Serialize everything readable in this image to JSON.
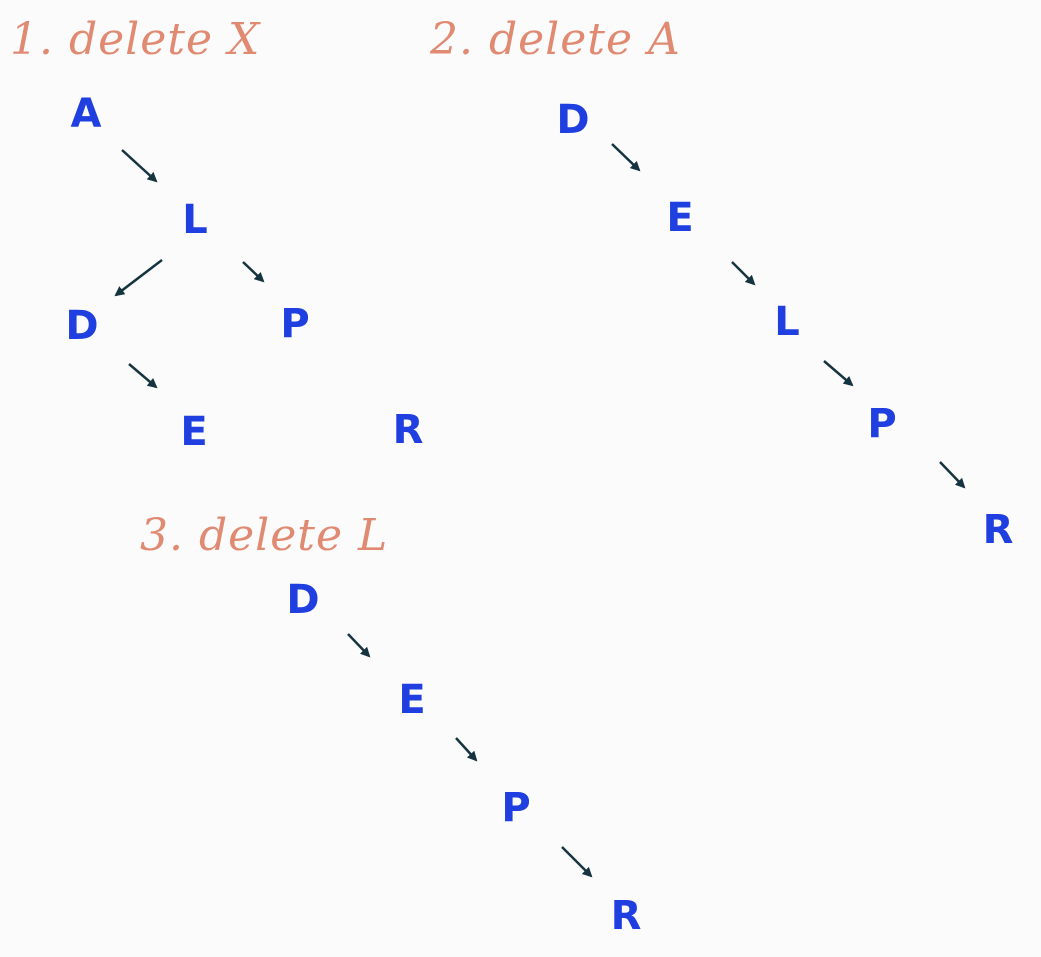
{
  "diagrams": [
    {
      "heading": "1. delete X",
      "nodes": {
        "A": "A",
        "L": "L",
        "D": "D",
        "P": "P",
        "E": "E",
        "R": "R"
      }
    },
    {
      "heading": "2. delete A",
      "nodes": {
        "D": "D",
        "E": "E",
        "L": "L",
        "P": "P",
        "R": "R"
      }
    },
    {
      "heading": "3. delete L",
      "nodes": {
        "D": "D",
        "E": "E",
        "P": "P",
        "R": "R"
      }
    }
  ],
  "colors": {
    "heading": "#e08a72",
    "node": "#1f3fe0",
    "arrow": "#15343f",
    "background": "#fbfbfb"
  }
}
